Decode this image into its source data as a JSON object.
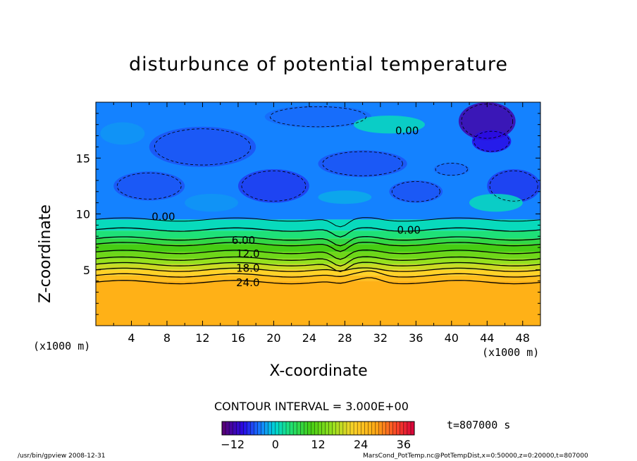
{
  "chart_data": {
    "type": "heatmap",
    "title": "disturbunce of potential temperature",
    "xlabel": "X-coordinate",
    "ylabel": "Z-coordinate",
    "x_unit_label": "(x1000 m)",
    "xlim": [
      0,
      50
    ],
    "ylim": [
      0,
      20
    ],
    "xticks": [
      4,
      8,
      12,
      16,
      20,
      24,
      28,
      32,
      36,
      40,
      44,
      48
    ],
    "yticks": [
      5,
      10,
      15
    ],
    "contour_interval_text": "CONTOUR INTERVAL = 3.000E+00",
    "contour_levels": [
      -9,
      -6,
      -3,
      0,
      3,
      6,
      9,
      12,
      15,
      18,
      21,
      24
    ],
    "contour_labels": [
      {
        "text": "0.00",
        "x": 7.6,
        "z": 9.8
      },
      {
        "text": "0.00",
        "x": 35.2,
        "z": 8.6
      },
      {
        "text": "0.00",
        "x": 35.0,
        "z": 17.5
      },
      {
        "text": "6.00",
        "x": 16.6,
        "z": 7.7
      },
      {
        "text": "12.0",
        "x": 17.1,
        "z": 6.5
      },
      {
        "text": "18.0",
        "x": 17.1,
        "z": 5.2
      },
      {
        "text": "24.0",
        "x": 17.1,
        "z": 3.9
      }
    ],
    "layers": [
      {
        "z_top": 4.0,
        "value": 27
      },
      {
        "z_top": 4.5,
        "value": 25
      },
      {
        "z_top": 5.0,
        "value": 22
      },
      {
        "z_top": 5.5,
        "value": 19
      },
      {
        "z_top": 6.0,
        "value": 16
      },
      {
        "z_top": 6.6,
        "value": 13
      },
      {
        "z_top": 7.3,
        "value": 10
      },
      {
        "z_top": 7.8,
        "value": 7
      },
      {
        "z_top": 8.5,
        "value": 4
      },
      {
        "z_top": 9.5,
        "value": 1
      },
      {
        "z_top": 20,
        "value": -4
      }
    ],
    "colorbar": {
      "min": -15,
      "max": 39,
      "ticks": [
        -12,
        0,
        12,
        24,
        36
      ]
    },
    "time_label": "t=807000 s"
  },
  "footer": {
    "left": "/usr/bin/gpview  2008-12-31",
    "right": "MarsCond_PotTemp.nc@PotTempDist,x=0:50000,z=0:20000,t=807000"
  }
}
